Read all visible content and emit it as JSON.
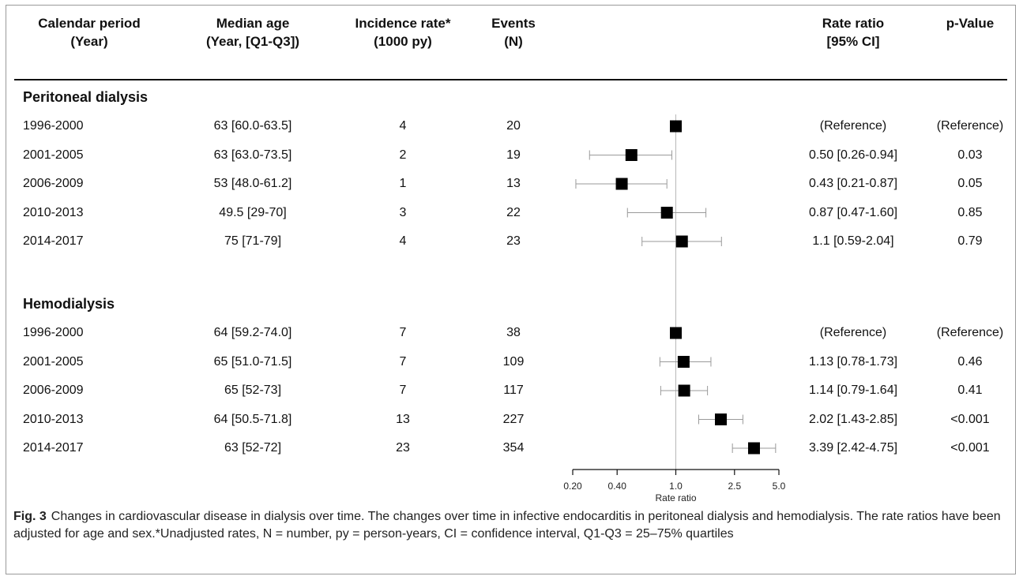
{
  "headers": {
    "period": [
      "Calendar period",
      "(Year)"
    ],
    "median_age": [
      "Median age",
      "(Year, [Q1-Q3])"
    ],
    "incidence": [
      "Incidence rate*",
      "(1000 py)"
    ],
    "events": [
      "Events",
      "(N)"
    ],
    "rate_ratio": [
      "Rate ratio",
      "[95% CI]"
    ],
    "pvalue": [
      "p-Value"
    ]
  },
  "groups": [
    {
      "name": "Peritoneal dialysis",
      "rows": [
        {
          "period": "1996-2000",
          "median_age": "63 [60.0-63.5]",
          "incidence": "4",
          "events": "20",
          "rr_text": "(Reference)",
          "p": "(Reference)",
          "rr": 1.0,
          "lo": null,
          "hi": null
        },
        {
          "period": "2001-2005",
          "median_age": "63 [63.0-73.5]",
          "incidence": "2",
          "events": "19",
          "rr_text": "0.50 [0.26-0.94]",
          "p": "0.03",
          "rr": 0.5,
          "lo": 0.26,
          "hi": 0.94
        },
        {
          "period": "2006-2009",
          "median_age": "53 [48.0-61.2]",
          "incidence": "1",
          "events": "13",
          "rr_text": "0.43 [0.21-0.87]",
          "p": "0.05",
          "rr": 0.43,
          "lo": 0.21,
          "hi": 0.87
        },
        {
          "period": "2010-2013",
          "median_age": "49.5 [29-70]",
          "incidence": "3",
          "events": "22",
          "rr_text": "0.87 [0.47-1.60]",
          "p": "0.85",
          "rr": 0.87,
          "lo": 0.47,
          "hi": 1.6
        },
        {
          "period": "2014-2017",
          "median_age": "75 [71-79]",
          "incidence": "4",
          "events": "23",
          "rr_text": "1.1 [0.59-2.04]",
          "p": "0.79",
          "rr": 1.1,
          "lo": 0.59,
          "hi": 2.04
        }
      ]
    },
    {
      "name": "Hemodialysis",
      "rows": [
        {
          "period": "1996-2000",
          "median_age": "64 [59.2-74.0]",
          "incidence": "7",
          "events": "38",
          "rr_text": "(Reference)",
          "p": "(Reference)",
          "rr": 1.0,
          "lo": null,
          "hi": null
        },
        {
          "period": "2001-2005",
          "median_age": "65 [51.0-71.5]",
          "incidence": "7",
          "events": "109",
          "rr_text": "1.13 [0.78-1.73]",
          "p": "0.46",
          "rr": 1.13,
          "lo": 0.78,
          "hi": 1.73
        },
        {
          "period": "2006-2009",
          "median_age": "65 [52-73]",
          "incidence": "7",
          "events": "117",
          "rr_text": "1.14 [0.79-1.64]",
          "p": "0.41",
          "rr": 1.14,
          "lo": 0.79,
          "hi": 1.64
        },
        {
          "period": "2010-2013",
          "median_age": "64 [50.5-71.8]",
          "incidence": "13",
          "events": "227",
          "rr_text": "2.02 [1.43-2.85]",
          "p": "<0.001",
          "rr": 2.02,
          "lo": 1.43,
          "hi": 2.85
        },
        {
          "period": "2014-2017",
          "median_age": "63 [52-72]",
          "incidence": "23",
          "events": "354",
          "rr_text": "3.39 [2.42-4.75]",
          "p": "<0.001",
          "rr": 3.39,
          "lo": 2.42,
          "hi": 4.75
        }
      ]
    }
  ],
  "chart_data": {
    "type": "scatter",
    "subtype": "forest-plot",
    "xscale": "log",
    "xlabel": "Rate ratio",
    "xticks": [
      0.2,
      0.4,
      1.0,
      2.5,
      5.0
    ],
    "xtick_labels": [
      "0.20",
      "0.40",
      "1.0",
      "2.5",
      "5.0"
    ],
    "reference_line": 1.0,
    "xlim": [
      0.2,
      5.0
    ],
    "series": [
      {
        "name": "Peritoneal dialysis",
        "categories": [
          "1996-2000",
          "2001-2005",
          "2006-2009",
          "2010-2013",
          "2014-2017"
        ],
        "values": [
          1.0,
          0.5,
          0.43,
          0.87,
          1.1
        ],
        "lower": [
          null,
          0.26,
          0.21,
          0.47,
          0.59
        ],
        "upper": [
          null,
          0.94,
          0.87,
          1.6,
          2.04
        ]
      },
      {
        "name": "Hemodialysis",
        "categories": [
          "1996-2000",
          "2001-2005",
          "2006-2009",
          "2010-2013",
          "2014-2017"
        ],
        "values": [
          1.0,
          1.13,
          1.14,
          2.02,
          3.39
        ],
        "lower": [
          null,
          0.78,
          0.79,
          1.43,
          2.42
        ],
        "upper": [
          null,
          1.73,
          1.64,
          2.85,
          4.75
        ]
      }
    ]
  },
  "caption": {
    "label": "Fig. 3",
    "text": "Changes in cardiovascular disease in dialysis over time. The changes over time in infective endocarditis in peritoneal dialysis and hemodialysis. The rate ratios have been adjusted for age and sex.*Unadjusted rates, N = number, py = person-years, CI = confidence interval, Q1-Q3 = 25–75% quartiles"
  }
}
